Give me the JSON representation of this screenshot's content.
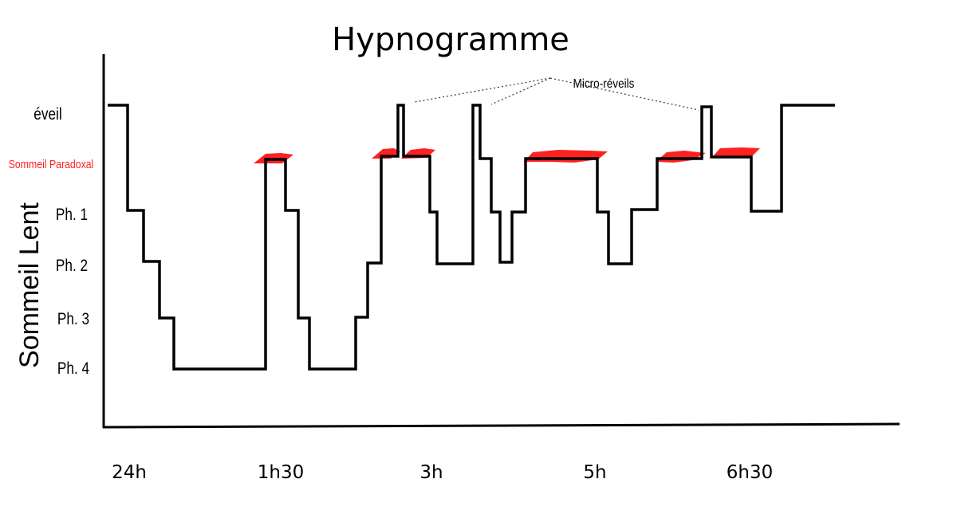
{
  "chart_data": {
    "type": "line",
    "title": "Hypnogramme",
    "y_categories": [
      "éveil",
      "Sommeil Paradoxal",
      "Ph. 1",
      "Ph. 2",
      "Ph. 3",
      "Ph. 4"
    ],
    "y_group_label": "Sommeil Lent",
    "x_ticks": [
      "24h",
      "1h30",
      "3h",
      "5h",
      "6h30"
    ],
    "annotation": "Micro-réveils",
    "colors": {
      "line": "#000000",
      "rem": "#ff2020",
      "axis": "#000000"
    },
    "grid": false,
    "legend": "none"
  }
}
